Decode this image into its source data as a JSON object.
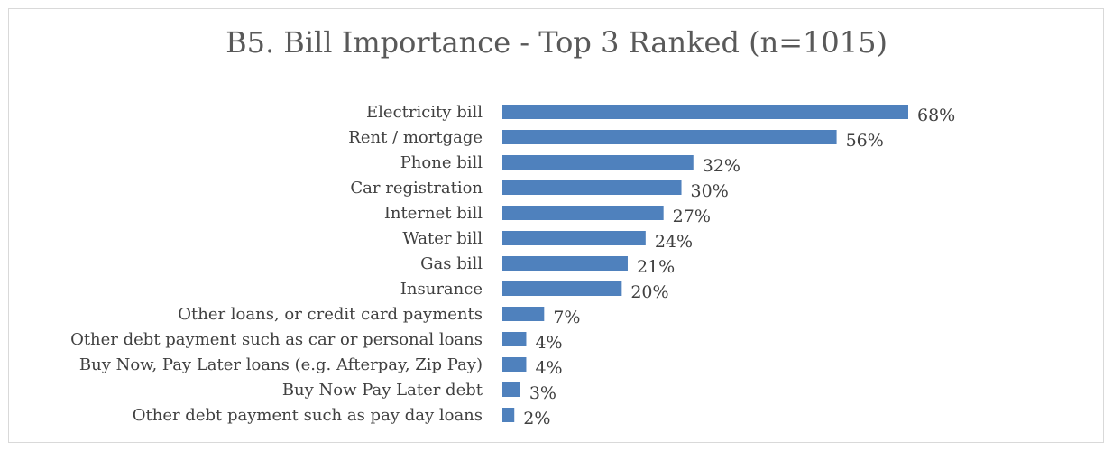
{
  "chart_data": {
    "type": "bar",
    "orientation": "horizontal",
    "title": "B5. Bill Importance - Top 3 Ranked (n=1015)",
    "categories": [
      "Electricity bill",
      "Rent / mortgage",
      "Phone bill",
      "Car registration",
      "Internet bill",
      "Water bill",
      "Gas bill",
      "Insurance",
      "Other loans, or credit card payments",
      "Other debt payment such as car or personal loans",
      "Buy Now, Pay Later loans (e.g. Afterpay, Zip Pay)",
      "Buy Now Pay Later debt",
      "Other debt payment such as pay day loans"
    ],
    "values": [
      68,
      56,
      32,
      30,
      27,
      24,
      21,
      20,
      7,
      4,
      4,
      3,
      2
    ],
    "value_labels": [
      "68%",
      "56%",
      "32%",
      "30%",
      "27%",
      "24%",
      "21%",
      "20%",
      "7%",
      "4%",
      "4%",
      "3%",
      "2%"
    ],
    "bar_color": "#4f81bd",
    "xlabel": "",
    "ylabel": "",
    "xlim": [
      0,
      68
    ],
    "grid": false,
    "legend": "none"
  }
}
